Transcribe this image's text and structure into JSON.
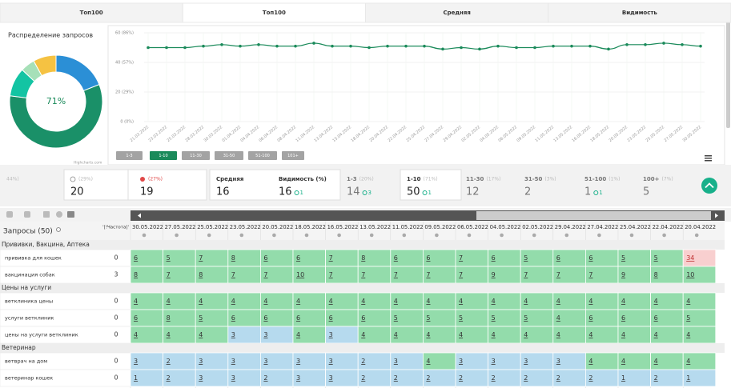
{
  "tabs": [
    "Топ100",
    "Топ100",
    "Средняя",
    "Видимость"
  ],
  "active_tab": 1,
  "chart_data": [
    {
      "type": "pie",
      "title": "Распределение запросов",
      "center_label": "71%",
      "credit": "Highcharts.com",
      "values": [
        19,
        58,
        10,
        5,
        8
      ],
      "colors": [
        "#2b8fd6",
        "#1a9068",
        "#13c4a3",
        "#a6e0b8",
        "#f5c242"
      ]
    },
    {
      "type": "line",
      "grid": true,
      "x": [
        "21.03.2022",
        "23.03.2022",
        "25.03.2022",
        "28.03.2022",
        "30.03.2022",
        "01.04.2022",
        "04.04.2022",
        "06.04.2022",
        "08.04.2022",
        "11.04.2022",
        "13.04.2022",
        "15.04.2022",
        "18.04.2022",
        "20.04.2022",
        "22.04.2022",
        "25.04.2022",
        "27.04.2022",
        "29.04.2022",
        "02.05.2022",
        "04.05.2022",
        "06.05.2022",
        "09.05.2022",
        "11.05.2022",
        "13.05.2022",
        "16.05.2022",
        "18.05.2022",
        "20.05.2022",
        "23.05.2022",
        "25.05.2022",
        "27.05.2022",
        "30.05.2022"
      ],
      "series": [
        {
          "color": "#1a8a5a",
          "values": [
            50,
            50,
            50,
            51,
            52,
            51,
            52,
            51,
            51,
            53,
            51,
            51,
            50,
            51,
            51,
            51,
            49,
            50,
            49,
            51,
            50,
            50,
            51,
            51,
            51,
            49,
            52,
            52,
            53,
            52,
            51
          ]
        }
      ],
      "ylim": [
        0,
        60
      ],
      "yticks": [
        {
          "value": 0,
          "label": "0 (0%)"
        },
        {
          "value": 20,
          "label": "20 (29%)"
        },
        {
          "value": 40,
          "label": "40 (57%)"
        },
        {
          "value": 60,
          "label": "60 (86%)"
        }
      ]
    }
  ],
  "range_buttons": {
    "labels": [
      "1-3",
      "1-10",
      "11-30",
      "31-50",
      "51-100",
      "101+"
    ],
    "active": 1
  },
  "stats": [
    {
      "pct": "44%)"
    },
    {
      "pct": "(29%)",
      "value": 20
    },
    {
      "pct": "(27%)",
      "value": 19
    },
    {
      "label": "Средняя",
      "value": 16
    },
    {
      "label": "Видимость (%)",
      "value": 16,
      "delta": 1
    },
    {
      "label": "1-3",
      "pct": "(20%)",
      "value": 14,
      "delta": 3
    },
    {
      "label": "1-10",
      "pct": "(71%)",
      "value": 50,
      "delta": 1
    },
    {
      "label": "11-30",
      "pct": "(17%)",
      "value": 12
    },
    {
      "label": "31-50",
      "pct": "(3%)",
      "value": 2
    },
    {
      "label": "51-100",
      "pct": "(1%)",
      "value": 1,
      "delta": 1
    },
    {
      "label": "100+",
      "pct": "(7%)",
      "value": 5
    }
  ],
  "table": {
    "query_header": "Запросы (50)",
    "freq_header": "'[!Частота]'",
    "dates": [
      "30.05.2022",
      "27.05.2022",
      "25.05.2022",
      "23.05.2022",
      "20.05.2022",
      "18.05.2022",
      "16.05.2022",
      "13.05.2022",
      "11.05.2022",
      "09.05.2022",
      "06.05.2022",
      "04.05.2022",
      "02.05.2022",
      "29.04.2022",
      "27.04.2022",
      "25.04.2022",
      "22.04.2022",
      "20.04.2022"
    ],
    "cell_colors": {
      "top3": "#b6daee",
      "top10": "#93dcab",
      "other": "#f8cfcf"
    },
    "groups": [
      {
        "name": "Прививки, Вакцина, Аптека",
        "rows": [
          {
            "query": "прививка для кошек",
            "freq": 0,
            "positions": [
              6,
              5,
              7,
              8,
              6,
              6,
              7,
              8,
              6,
              6,
              7,
              6,
              5,
              6,
              6,
              5,
              5,
              34
            ]
          },
          {
            "query": "вакцинация собак",
            "freq": 3,
            "positions": [
              8,
              7,
              8,
              7,
              7,
              10,
              7,
              7,
              7,
              7,
              7,
              9,
              7,
              7,
              7,
              9,
              8,
              10
            ]
          }
        ]
      },
      {
        "name": "Цены на услуги",
        "rows": [
          {
            "query": "ветклиника цены",
            "freq": 0,
            "positions": [
              4,
              4,
              4,
              4,
              4,
              4,
              4,
              4,
              4,
              4,
              4,
              4,
              4,
              4,
              4,
              4,
              4,
              4
            ]
          },
          {
            "query": "услуги ветклиник",
            "freq": 0,
            "positions": [
              6,
              8,
              5,
              6,
              6,
              6,
              6,
              6,
              5,
              5,
              5,
              5,
              5,
              4,
              6,
              6,
              6,
              5
            ]
          },
          {
            "query": "цены на услуги ветклиник",
            "freq": 0,
            "positions": [
              4,
              4,
              4,
              3,
              3,
              4,
              3,
              4,
              4,
              4,
              4,
              4,
              4,
              4,
              4,
              4,
              4,
              4
            ]
          }
        ]
      },
      {
        "name": "Ветеринар",
        "rows": [
          {
            "query": "ветврач на дом",
            "freq": 0,
            "positions": [
              3,
              2,
              3,
              3,
              3,
              3,
              3,
              2,
              3,
              4,
              3,
              3,
              3,
              3,
              4,
              4,
              4,
              4
            ]
          },
          {
            "query": "ветеринар кошек",
            "freq": 0,
            "positions": [
              1,
              2,
              3,
              3,
              2,
              3,
              3,
              2,
              2,
              2,
              2,
              2,
              2,
              2,
              2,
              1,
              2,
              1
            ]
          }
        ]
      }
    ]
  }
}
